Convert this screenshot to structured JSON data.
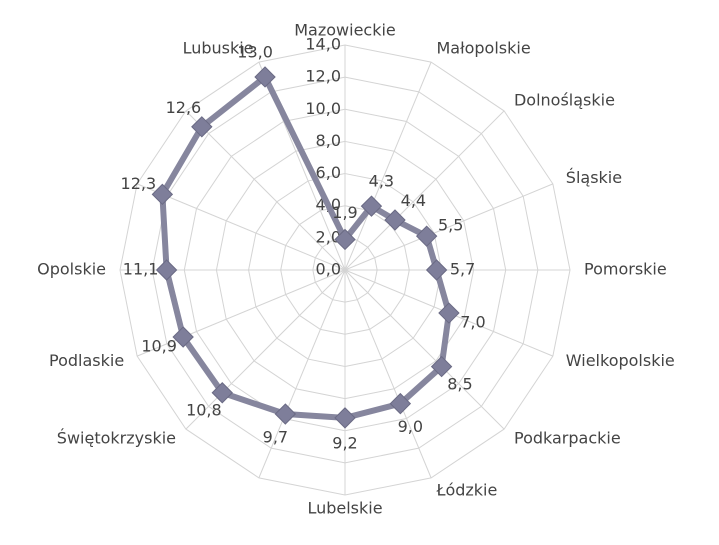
{
  "chart_data": {
    "type": "radar",
    "categories": [
      "Mazowieckie",
      "Małopolskie",
      "Dolnośląskie",
      "Śląskie",
      "Pomorskie",
      "Wielkopolskie",
      "Podkarpackie",
      "Łódzkie",
      "Lubelskie",
      null,
      "Świętokrzyskie",
      "Podlaskie",
      "Opolskie",
      null,
      null,
      "Lubuskie"
    ],
    "series": [
      {
        "color": "#86869e",
        "values": [
          1.9,
          4.3,
          4.4,
          5.5,
          5.7,
          7.0,
          8.5,
          9.0,
          9.2,
          9.7,
          10.8,
          10.9,
          11.1,
          12.3,
          12.6,
          13.0
        ],
        "value_labels": [
          "1,9",
          "4,3",
          "4,4",
          "5,5",
          "5,7",
          "7,0",
          "8,5",
          "9,0",
          "9,2",
          "9,7",
          "10,8",
          "10,9",
          "11,1",
          "12,3",
          "12,6",
          "13,0"
        ]
      }
    ],
    "ylim": [
      0,
      14
    ],
    "yticks": [
      {
        "value": 0,
        "label": "0,0"
      },
      {
        "value": 2,
        "label": "2,0"
      },
      {
        "value": 4,
        "label": "4,0"
      },
      {
        "value": 6,
        "label": "6,0"
      },
      {
        "value": 8,
        "label": "8,0"
      },
      {
        "value": 10,
        "label": "10,0"
      },
      {
        "value": 12,
        "label": "12,0"
      },
      {
        "value": 14,
        "label": "14,0"
      }
    ],
    "grid": true
  }
}
